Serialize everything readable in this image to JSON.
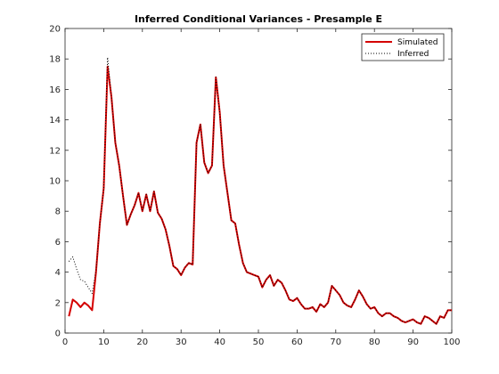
{
  "chart_data": {
    "type": "line",
    "title": "Inferred Conditional Variances - Presample E",
    "xlabel": "",
    "ylabel": "",
    "xlim": [
      0,
      100
    ],
    "ylim": [
      0,
      20
    ],
    "xticks": [
      0,
      10,
      20,
      30,
      40,
      50,
      60,
      70,
      80,
      90,
      100
    ],
    "yticks": [
      0,
      2,
      4,
      6,
      8,
      10,
      12,
      14,
      16,
      18,
      20
    ],
    "grid": false,
    "legend_position": "top-right",
    "series": [
      {
        "name": "Simulated",
        "style": "solid",
        "color": "#d40000",
        "x": [
          1,
          2,
          3,
          4,
          5,
          6,
          7,
          8,
          9,
          10,
          11,
          12,
          13,
          14,
          15,
          16,
          17,
          18,
          19,
          20,
          21,
          22,
          23,
          24,
          25,
          26,
          27,
          28,
          29,
          30,
          31,
          32,
          33,
          34,
          35,
          36,
          37,
          38,
          39,
          40,
          41,
          42,
          43,
          44,
          45,
          46,
          47,
          48,
          49,
          50,
          51,
          52,
          53,
          54,
          55,
          56,
          57,
          58,
          59,
          60,
          61,
          62,
          63,
          64,
          65,
          66,
          67,
          68,
          69,
          70,
          71,
          72,
          73,
          74,
          75,
          76,
          77,
          78,
          79,
          80,
          81,
          82,
          83,
          84,
          85,
          86,
          87,
          88,
          89,
          90,
          91,
          92,
          93,
          94,
          95,
          96,
          97,
          98,
          99,
          100
        ],
        "values": [
          1.1,
          2.2,
          2.0,
          1.7,
          2.0,
          1.8,
          1.5,
          4.0,
          7.2,
          9.5,
          17.5,
          15.5,
          12.5,
          11.0,
          9.0,
          7.1,
          7.8,
          8.4,
          9.2,
          8.0,
          9.1,
          8.0,
          9.3,
          7.9,
          7.5,
          6.8,
          5.7,
          4.4,
          4.2,
          3.8,
          4.3,
          4.6,
          4.5,
          12.5,
          13.7,
          11.2,
          10.5,
          11.0,
          16.8,
          14.5,
          11.0,
          9.2,
          7.4,
          7.2,
          5.8,
          4.6,
          4.0,
          3.9,
          3.8,
          3.7,
          3.0,
          3.5,
          3.8,
          3.1,
          3.5,
          3.3,
          2.8,
          2.2,
          2.1,
          2.3,
          1.9,
          1.6,
          1.6,
          1.7,
          1.4,
          1.9,
          1.7,
          2.0,
          3.1,
          2.8,
          2.5,
          2.0,
          1.8,
          1.7,
          2.2,
          2.8,
          2.4,
          1.9,
          1.6,
          1.7,
          1.3,
          1.1,
          1.3,
          1.3,
          1.1,
          1.0,
          0.8,
          0.7,
          0.8,
          0.9,
          0.7,
          0.6,
          1.1,
          1.0,
          0.8,
          0.6,
          1.1,
          1.0,
          1.5,
          1.5
        ]
      },
      {
        "name": "Inferred",
        "style": "dotted",
        "color": "#000000",
        "x": [
          1,
          2,
          3,
          4,
          5,
          6,
          7,
          8,
          9,
          10,
          11,
          12,
          13,
          14,
          15,
          16,
          17,
          18,
          19,
          20,
          21,
          22,
          23,
          24,
          25,
          26,
          27,
          28,
          29,
          30,
          31,
          32,
          33,
          34,
          35,
          36,
          37,
          38,
          39,
          40,
          41,
          42,
          43,
          44,
          45,
          46,
          47,
          48,
          49,
          50,
          51,
          52,
          53,
          54,
          55,
          56,
          57,
          58,
          59,
          60,
          61,
          62,
          63,
          64,
          65,
          66,
          67,
          68,
          69,
          70,
          71,
          72,
          73,
          74,
          75,
          76,
          77,
          78,
          79,
          80,
          81,
          82,
          83,
          84,
          85,
          86,
          87,
          88,
          89,
          90,
          91,
          92,
          93,
          94,
          95,
          96,
          97,
          98,
          99,
          100
        ],
        "values": [
          4.7,
          5.0,
          4.2,
          3.5,
          3.4,
          3.0,
          2.6,
          4.1,
          7.2,
          9.5,
          18.1,
          15.5,
          12.5,
          11.0,
          9.0,
          7.1,
          7.8,
          8.4,
          9.2,
          8.0,
          9.1,
          8.0,
          9.3,
          7.9,
          7.5,
          6.8,
          5.7,
          4.4,
          4.2,
          3.8,
          4.3,
          4.6,
          4.5,
          12.5,
          13.7,
          11.2,
          10.5,
          11.0,
          16.8,
          14.5,
          11.0,
          9.2,
          7.4,
          7.2,
          5.8,
          4.6,
          4.0,
          3.9,
          3.8,
          3.7,
          3.0,
          3.5,
          3.8,
          3.1,
          3.5,
          3.3,
          2.8,
          2.2,
          2.1,
          2.3,
          1.9,
          1.6,
          1.6,
          1.7,
          1.4,
          1.9,
          1.7,
          2.0,
          3.1,
          2.8,
          2.5,
          2.0,
          1.8,
          1.7,
          2.2,
          2.8,
          2.4,
          1.9,
          1.6,
          1.7,
          1.3,
          1.1,
          1.3,
          1.3,
          1.1,
          1.0,
          0.8,
          0.7,
          0.8,
          0.9,
          0.7,
          0.6,
          1.1,
          1.0,
          0.8,
          0.6,
          1.1,
          1.0,
          1.5,
          1.5
        ]
      }
    ]
  }
}
